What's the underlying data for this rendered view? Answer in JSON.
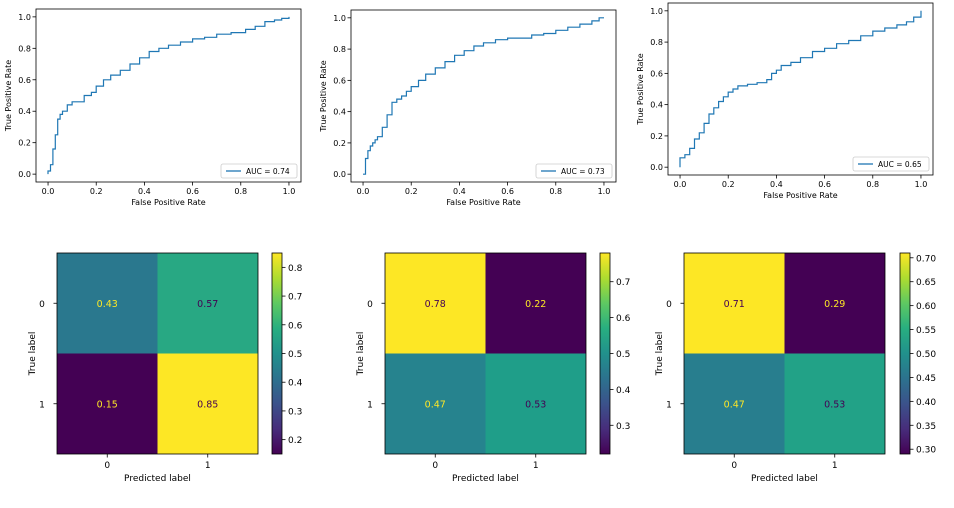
{
  "chart_data": [
    {
      "type": "line",
      "kind": "roc",
      "xlabel": "False Positive Rate",
      "ylabel": "True Positive Rate",
      "xlim": [
        -0.05,
        1.05
      ],
      "ylim": [
        -0.05,
        1.05
      ],
      "xticks": [
        "0.0",
        "0.2",
        "0.4",
        "0.6",
        "0.8",
        "1.0"
      ],
      "yticks": [
        "0.0",
        "0.2",
        "0.4",
        "0.6",
        "0.8",
        "1.0"
      ],
      "legend": "AUC = 0.74",
      "legend_position": "lower-right",
      "line_color": "#1f77b4",
      "x": [
        0.0,
        0.0,
        0.01,
        0.01,
        0.02,
        0.02,
        0.03,
        0.03,
        0.04,
        0.04,
        0.05,
        0.06,
        0.08,
        0.1,
        0.12,
        0.15,
        0.18,
        0.2,
        0.23,
        0.26,
        0.3,
        0.34,
        0.38,
        0.42,
        0.46,
        0.5,
        0.55,
        0.6,
        0.65,
        0.7,
        0.76,
        0.82,
        0.86,
        0.9,
        0.94,
        0.97,
        1.0
      ],
      "y": [
        0.0,
        0.02,
        0.02,
        0.06,
        0.08,
        0.16,
        0.16,
        0.25,
        0.3,
        0.35,
        0.38,
        0.4,
        0.44,
        0.46,
        0.46,
        0.5,
        0.52,
        0.56,
        0.6,
        0.63,
        0.66,
        0.7,
        0.74,
        0.78,
        0.8,
        0.82,
        0.84,
        0.86,
        0.87,
        0.89,
        0.9,
        0.92,
        0.94,
        0.97,
        0.98,
        0.99,
        1.0
      ]
    },
    {
      "type": "line",
      "kind": "roc",
      "xlabel": "False Positive Rate",
      "ylabel": "True Positive Rate",
      "xlim": [
        -0.05,
        1.05
      ],
      "ylim": [
        -0.05,
        1.05
      ],
      "xticks": [
        "0.0",
        "0.2",
        "0.4",
        "0.6",
        "0.8",
        "1.0"
      ],
      "yticks": [
        "0.0",
        "0.2",
        "0.4",
        "0.6",
        "0.8",
        "1.0"
      ],
      "legend": "AUC = 0.73",
      "legend_position": "lower-right",
      "line_color": "#1f77b4",
      "x": [
        0.0,
        0.01,
        0.02,
        0.03,
        0.04,
        0.05,
        0.06,
        0.08,
        0.1,
        0.12,
        0.14,
        0.16,
        0.18,
        0.2,
        0.23,
        0.26,
        0.3,
        0.34,
        0.38,
        0.42,
        0.46,
        0.5,
        0.55,
        0.6,
        0.65,
        0.7,
        0.75,
        0.8,
        0.85,
        0.9,
        0.95,
        0.98,
        1.0
      ],
      "y": [
        0.0,
        0.1,
        0.15,
        0.18,
        0.2,
        0.22,
        0.24,
        0.3,
        0.38,
        0.46,
        0.48,
        0.5,
        0.53,
        0.56,
        0.6,
        0.64,
        0.68,
        0.72,
        0.76,
        0.79,
        0.82,
        0.84,
        0.86,
        0.87,
        0.87,
        0.89,
        0.9,
        0.92,
        0.94,
        0.96,
        0.98,
        1.0,
        1.0
      ]
    },
    {
      "type": "line",
      "kind": "roc",
      "xlabel": "False Positive Rate",
      "ylabel": "True Positive Rate",
      "xlim": [
        -0.05,
        1.05
      ],
      "ylim": [
        -0.05,
        1.05
      ],
      "xticks": [
        "0.0",
        "0.2",
        "0.4",
        "0.6",
        "0.8",
        "1.0"
      ],
      "yticks": [
        "0.0",
        "0.2",
        "0.4",
        "0.6",
        "0.8",
        "1.0"
      ],
      "legend": "AUC = 0.65",
      "legend_position": "lower-right",
      "line_color": "#1f77b4",
      "x": [
        0.0,
        0.0,
        0.02,
        0.04,
        0.06,
        0.08,
        0.1,
        0.12,
        0.14,
        0.16,
        0.18,
        0.2,
        0.22,
        0.24,
        0.28,
        0.32,
        0.36,
        0.38,
        0.4,
        0.42,
        0.46,
        0.5,
        0.55,
        0.6,
        0.65,
        0.7,
        0.75,
        0.8,
        0.85,
        0.9,
        0.94,
        0.97,
        1.0
      ],
      "y": [
        0.0,
        0.06,
        0.08,
        0.12,
        0.18,
        0.22,
        0.28,
        0.34,
        0.38,
        0.42,
        0.45,
        0.48,
        0.5,
        0.52,
        0.53,
        0.54,
        0.56,
        0.6,
        0.62,
        0.65,
        0.67,
        0.7,
        0.74,
        0.76,
        0.79,
        0.81,
        0.84,
        0.87,
        0.89,
        0.91,
        0.93,
        0.96,
        1.0
      ]
    },
    {
      "type": "heatmap",
      "kind": "confusion_matrix",
      "xlabel": "Predicted label",
      "ylabel": "True label",
      "xticks": [
        "0",
        "1"
      ],
      "yticks": [
        "0",
        "1"
      ],
      "values": [
        [
          0.43,
          0.57
        ],
        [
          0.15,
          0.85
        ]
      ],
      "labels": [
        [
          "0.43",
          "0.57"
        ],
        [
          "0.15",
          "0.85"
        ]
      ],
      "colorbar": {
        "min": 0.15,
        "max": 0.85,
        "ticks": [
          0.2,
          0.3,
          0.4,
          0.5,
          0.6,
          0.7,
          0.8
        ],
        "tick_labels": [
          "0.2",
          "0.3",
          "0.4",
          "0.5",
          "0.6",
          "0.7",
          "0.8"
        ]
      },
      "colormap": "viridis"
    },
    {
      "type": "heatmap",
      "kind": "confusion_matrix",
      "xlabel": "Predicted label",
      "ylabel": "True label",
      "xticks": [
        "0",
        "1"
      ],
      "yticks": [
        "0",
        "1"
      ],
      "values": [
        [
          0.78,
          0.22
        ],
        [
          0.47,
          0.53
        ]
      ],
      "labels": [
        [
          "0.78",
          "0.22"
        ],
        [
          "0.47",
          "0.53"
        ]
      ],
      "colorbar": {
        "min": 0.22,
        "max": 0.78,
        "ticks": [
          0.3,
          0.4,
          0.5,
          0.6,
          0.7
        ],
        "tick_labels": [
          "0.3",
          "0.4",
          "0.5",
          "0.6",
          "0.7"
        ]
      },
      "colormap": "viridis"
    },
    {
      "type": "heatmap",
      "kind": "confusion_matrix",
      "xlabel": "Predicted label",
      "ylabel": "True label",
      "xticks": [
        "0",
        "1"
      ],
      "yticks": [
        "0",
        "1"
      ],
      "values": [
        [
          0.71,
          0.29
        ],
        [
          0.47,
          0.53
        ]
      ],
      "labels": [
        [
          "0.71",
          "0.29"
        ],
        [
          "0.47",
          "0.53"
        ]
      ],
      "colorbar": {
        "min": 0.29,
        "max": 0.71,
        "ticks": [
          0.3,
          0.35,
          0.4,
          0.45,
          0.5,
          0.55,
          0.6,
          0.65,
          0.7
        ],
        "tick_labels": [
          "0.30",
          "0.35",
          "0.40",
          "0.45",
          "0.50",
          "0.55",
          "0.60",
          "0.65",
          "0.70"
        ]
      },
      "colormap": "viridis"
    }
  ]
}
